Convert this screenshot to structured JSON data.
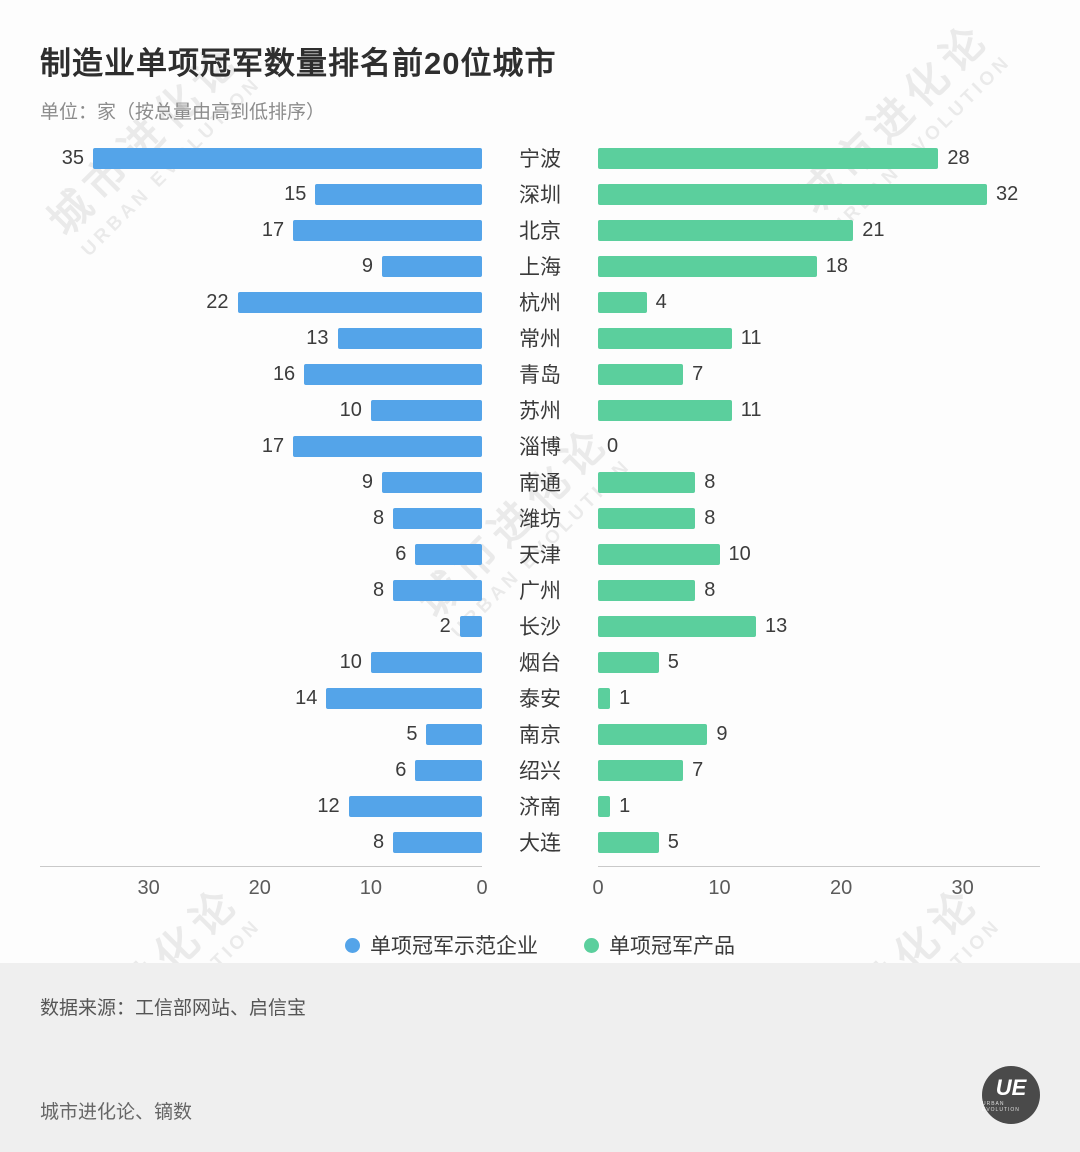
{
  "header": {
    "title": "制造业单项冠军数量排名前20位城市",
    "subtitle": "单位：家（按总量由高到低排序）"
  },
  "chart_data": {
    "type": "bar",
    "orientation": "horizontal-diverging",
    "title": "制造业单项冠军数量排名前20位城市",
    "unit_note": "单位：家（按总量由高到低排序）",
    "categories": [
      "宁波",
      "深圳",
      "北京",
      "上海",
      "杭州",
      "常州",
      "青岛",
      "苏州",
      "淄博",
      "南通",
      "潍坊",
      "天津",
      "广州",
      "长沙",
      "烟台",
      "泰安",
      "南京",
      "绍兴",
      "济南",
      "大连"
    ],
    "series": [
      {
        "name": "单项冠军示范企业",
        "side": "left",
        "color": "#54a4e9",
        "values": [
          35,
          15,
          17,
          9,
          22,
          13,
          16,
          10,
          17,
          9,
          8,
          6,
          8,
          2,
          10,
          14,
          5,
          6,
          12,
          8
        ],
        "axis_ticks": [
          30,
          20,
          10,
          0
        ],
        "xlim": [
          0,
          35
        ]
      },
      {
        "name": "单项冠军产品",
        "side": "right",
        "color": "#5bcf9d",
        "values": [
          28,
          32,
          21,
          18,
          4,
          11,
          7,
          11,
          0,
          8,
          8,
          10,
          8,
          13,
          5,
          1,
          9,
          7,
          1,
          5
        ],
        "axis_ticks": [
          0,
          10,
          20,
          30
        ],
        "xlim": [
          0,
          32
        ]
      }
    ],
    "grid": false,
    "legend_position": "bottom"
  },
  "legend": {
    "items": [
      {
        "label": "单项冠军示范企业",
        "color": "#54a4e9"
      },
      {
        "label": "单项冠军产品",
        "color": "#5bcf9d"
      }
    ]
  },
  "footer": {
    "source": "数据来源：工信部网站、启信宝",
    "credit": "城市进化论、镝数",
    "logo": "UE",
    "logo_sub": "URBAN EVOLUTION"
  },
  "watermark": {
    "cn": "城市进化论",
    "en": "URBAN EVOLUTION"
  }
}
